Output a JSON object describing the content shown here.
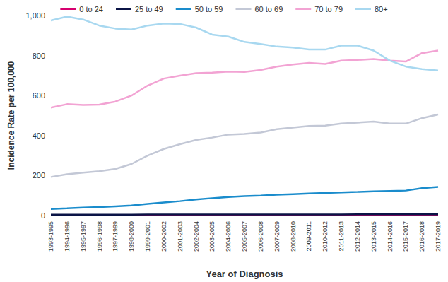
{
  "chart_data": {
    "type": "line",
    "x_label": "Year of Diagnosis",
    "y_label": "Incidence Rate per 100,000",
    "categories": [
      "1993-1995",
      "1994-1996",
      "1995-1997",
      "1996-1998",
      "1997-1999",
      "1998-2000",
      "1999-2001",
      "2000-2002",
      "2001-2003",
      "2002-2004",
      "2003-2005",
      "2004-2006",
      "2005-2007",
      "2006-2008",
      "2007-2009",
      "2008-2010",
      "2009-2011",
      "2010-2012",
      "2011-2013",
      "2012-2014",
      "2013-2015",
      "2014-2016",
      "2015-2017",
      "2016-2018",
      "2017-2019"
    ],
    "series": [
      {
        "name": "0 to 24",
        "color": "#d6006f",
        "values": [
          0.5,
          0.5,
          0.5,
          0.5,
          0.5,
          0.5,
          0.5,
          0.5,
          0.5,
          0.5,
          0.5,
          0.5,
          0.5,
          0.5,
          0.5,
          0.5,
          0.5,
          0.5,
          0.5,
          0.5,
          0.5,
          0.5,
          0.5,
          0.5,
          0.5
        ]
      },
      {
        "name": "25 to 49",
        "color": "#0b1446",
        "values": [
          4,
          4,
          4,
          4,
          4,
          4,
          5,
          5,
          5,
          5,
          5,
          5,
          5,
          5,
          5,
          5,
          5,
          5,
          5,
          6,
          6,
          6,
          6,
          6,
          6
        ]
      },
      {
        "name": "50 to 59",
        "color": "#1a8ccc",
        "values": [
          33,
          36,
          40,
          42,
          46,
          50,
          58,
          65,
          72,
          80,
          87,
          93,
          97,
          100,
          104,
          107,
          110,
          113,
          116,
          118,
          121,
          123,
          125,
          137,
          143
        ]
      },
      {
        "name": "60 to 69",
        "color": "#c3c8d6",
        "values": [
          193,
          207,
          215,
          222,
          233,
          258,
          300,
          333,
          357,
          378,
          390,
          405,
          408,
          415,
          432,
          440,
          448,
          450,
          460,
          465,
          470,
          460,
          460,
          487,
          505
        ]
      },
      {
        "name": "70 to 79",
        "color": "#f2a3d3",
        "values": [
          540,
          557,
          553,
          555,
          570,
          600,
          650,
          685,
          700,
          712,
          715,
          720,
          718,
          728,
          745,
          755,
          763,
          758,
          775,
          778,
          783,
          775,
          770,
          812,
          825
        ]
      },
      {
        "name": "80+",
        "color": "#a8d8f0",
        "values": [
          975,
          995,
          980,
          950,
          935,
          930,
          950,
          960,
          958,
          940,
          905,
          895,
          868,
          858,
          845,
          840,
          830,
          830,
          850,
          850,
          825,
          775,
          745,
          732,
          725
        ]
      }
    ],
    "ylim": [
      0,
      1000
    ],
    "yticks": [
      0,
      200,
      400,
      600,
      800,
      {
        "value": 1000,
        "label": "1,000"
      }
    ],
    "grid": false,
    "legend": "top",
    "marker": "none"
  }
}
